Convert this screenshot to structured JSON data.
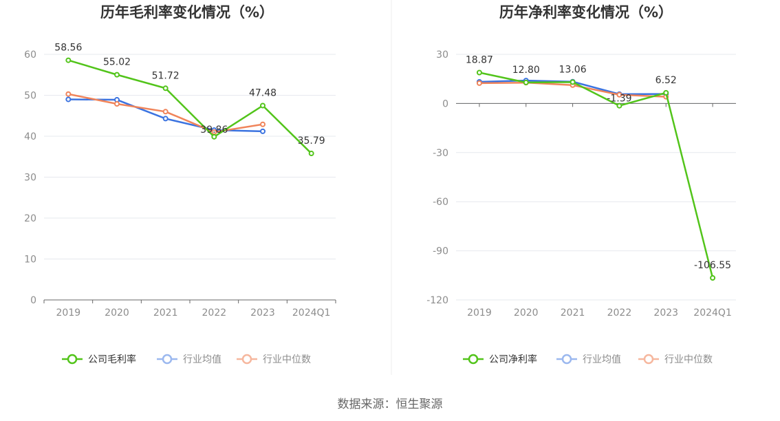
{
  "chart_data": [
    {
      "type": "line",
      "title": "历年毛利率变化情况（%）",
      "categories": [
        "2019",
        "2020",
        "2021",
        "2022",
        "2023",
        "2024Q1"
      ],
      "ylim": [
        0,
        60
      ],
      "yticks": [
        0,
        10,
        20,
        30,
        40,
        50,
        60
      ],
      "grid": true,
      "legend_position": "bottom",
      "series": [
        {
          "name": "公司毛利率",
          "color": "#52c41a",
          "values": [
            58.56,
            55.02,
            51.72,
            39.86,
            47.48,
            35.79
          ],
          "labels": [
            "58.56",
            "55.02",
            "51.72",
            "39.86",
            "47.48",
            "35.79"
          ]
        },
        {
          "name": "行业均值",
          "color": "#3b73e0",
          "values": [
            49.0,
            48.9,
            44.3,
            41.5,
            41.2,
            null
          ]
        },
        {
          "name": "行业中位数",
          "color": "#f0845a",
          "values": [
            50.3,
            47.9,
            46.0,
            41.0,
            42.9,
            null
          ]
        }
      ]
    },
    {
      "type": "line",
      "title": "历年净利率变化情况（%）",
      "categories": [
        "2019",
        "2020",
        "2021",
        "2022",
        "2023",
        "2024Q1"
      ],
      "ylim": [
        -120,
        30
      ],
      "yticks": [
        -120,
        -90,
        -60,
        -30,
        0,
        30
      ],
      "grid": true,
      "legend_position": "bottom",
      "series": [
        {
          "name": "公司净利率",
          "color": "#52c41a",
          "values": [
            18.87,
            12.8,
            13.06,
            -1.39,
            6.52,
            -106.55
          ],
          "labels": [
            "18.87",
            "12.80",
            "13.06",
            "-1.39",
            "6.52",
            "-106.55"
          ]
        },
        {
          "name": "行业均值",
          "color": "#3b73e0",
          "values": [
            13.2,
            14.0,
            13.3,
            5.7,
            5.8,
            null
          ]
        },
        {
          "name": "行业中位数",
          "color": "#f0845a",
          "values": [
            12.4,
            12.7,
            11.2,
            5.3,
            4.1,
            null
          ]
        }
      ]
    }
  ],
  "source": "数据来源：恒生聚源"
}
